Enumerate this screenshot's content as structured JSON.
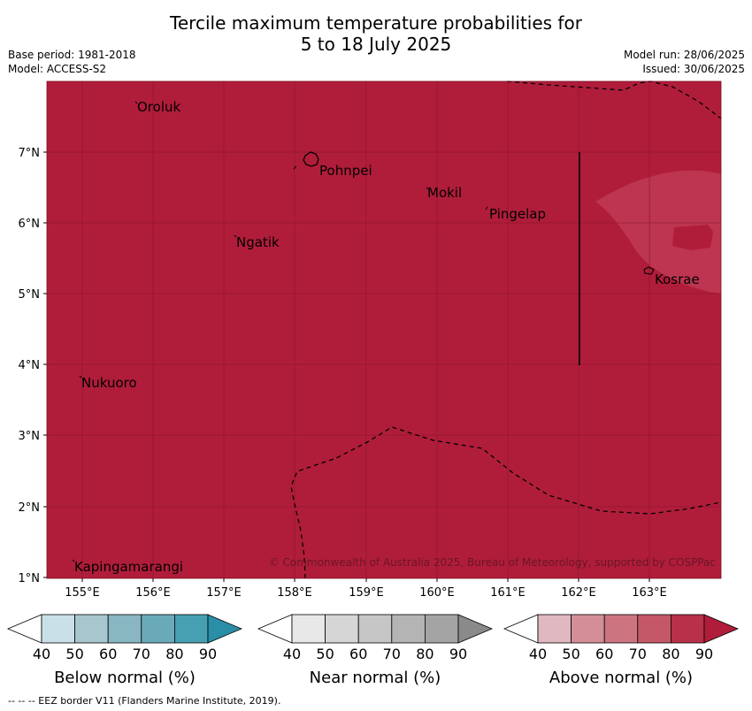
{
  "title": {
    "line1": "Tercile maximum temperature probabilities for",
    "line2": "5 to 18 July 2025"
  },
  "meta_left": {
    "base_period": "Base period: 1981-2018",
    "model": "Model: ACCESS-S2"
  },
  "meta_right": {
    "model_run": "Model run: 28/06/2025",
    "issued": "Issued: 30/06/2025"
  },
  "map": {
    "longitude_ticks": [
      "155°E",
      "156°E",
      "157°E",
      "158°E",
      "159°E",
      "160°E",
      "161°E",
      "162°E",
      "163°E"
    ],
    "latitude_ticks": [
      "7°N",
      "6°N",
      "5°N",
      "4°N",
      "3°N",
      "2°N",
      "1°N"
    ],
    "places": [
      {
        "name": "Oroluk"
      },
      {
        "name": "Pohnpei"
      },
      {
        "name": "Mokil"
      },
      {
        "name": "Pingelap"
      },
      {
        "name": "Ngatik"
      },
      {
        "name": "Kosrae"
      },
      {
        "name": "Nukuoro"
      },
      {
        "name": "Kapingamarangi"
      }
    ],
    "copyright": "© Commonwealth of Australia 2025, Bureau of Meteorology, supported by COSPPac",
    "colors": {
      "above_90": "#b01d3a",
      "above_80": "#bd3550",
      "grid": "#7a1026"
    }
  },
  "legend": [
    {
      "label": "Below normal (%)",
      "ticks": [
        "40",
        "50",
        "60",
        "70",
        "80",
        "90"
      ],
      "colors": [
        "#ffffff",
        "#c8e0e6",
        "#a7c6cd",
        "#88b6c1",
        "#6aaab8",
        "#46a0b2",
        "#2a8ea6"
      ]
    },
    {
      "label": "Near normal (%)",
      "ticks": [
        "40",
        "50",
        "60",
        "70",
        "80",
        "90"
      ],
      "colors": [
        "#ffffff",
        "#e8e8e8",
        "#d6d6d6",
        "#c6c6c6",
        "#b4b4b4",
        "#a4a4a4",
        "#8a8a8a"
      ]
    },
    {
      "label": "Above normal (%)",
      "ticks": [
        "40",
        "50",
        "60",
        "70",
        "80",
        "90"
      ],
      "colors": [
        "#ffffff",
        "#e0b8c0",
        "#d48e98",
        "#cc7580",
        "#c45868",
        "#b8304a",
        "#b01d3a"
      ]
    }
  ],
  "footnote": "--  --  -- EEZ border V11 (Flanders Marine Institute, 2019)."
}
